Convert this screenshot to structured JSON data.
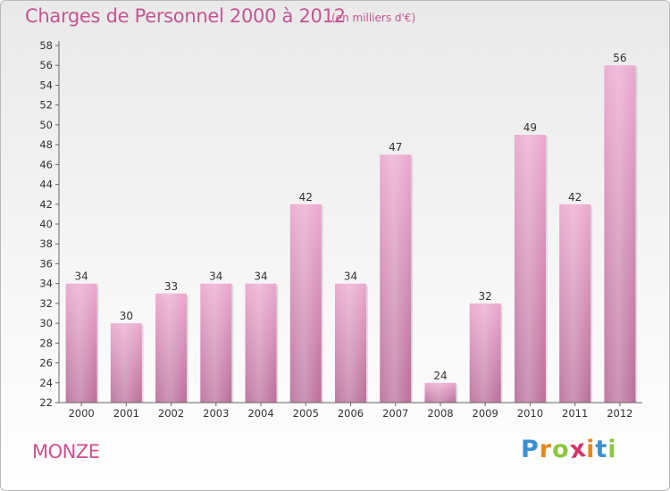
{
  "title": "Charges de Personnel 2000 à 2012",
  "subtitle": "(en milliers d'€)",
  "commune": "MONZE",
  "logo": {
    "letters": [
      "P",
      "r",
      "o",
      "x",
      "i",
      "t",
      "i"
    ],
    "colors": [
      "#3a8fd0",
      "#e8871e",
      "#8cc63f",
      "#d6336c",
      "#e8871e",
      "#3a8fd0",
      "#8cc63f"
    ]
  },
  "chart_data": {
    "type": "bar",
    "title": "Charges de Personnel 2000 à 2012",
    "subtitle": "(en milliers d'€)",
    "categories": [
      "2000",
      "2001",
      "2002",
      "2003",
      "2004",
      "2005",
      "2006",
      "2007",
      "2008",
      "2009",
      "2010",
      "2011",
      "2012"
    ],
    "values": [
      34,
      30,
      33,
      34,
      34,
      42,
      34,
      47,
      24,
      32,
      49,
      42,
      56
    ],
    "ylim": [
      22,
      58
    ],
    "yticks": [
      22,
      24,
      26,
      28,
      30,
      32,
      34,
      36,
      38,
      40,
      42,
      44,
      46,
      48,
      50,
      52,
      54,
      56,
      58
    ],
    "grid": false,
    "bar_color": "#d67bab"
  }
}
